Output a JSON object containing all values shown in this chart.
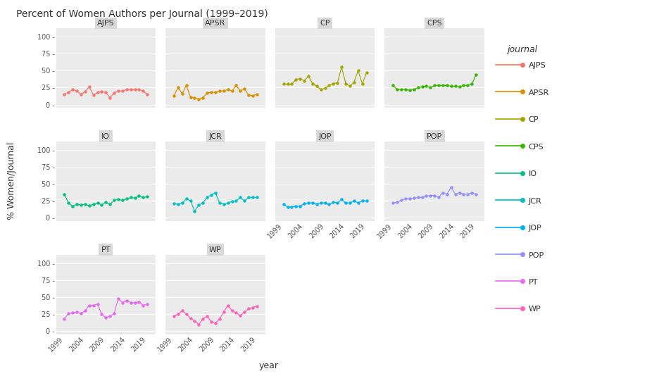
{
  "title": "Percent of Women Authors per Journal (1999–2019)",
  "ylabel": "% Women/Journal",
  "xlabel": "year",
  "colors": {
    "AJPS": "#F8766D",
    "APSR": "#D89000",
    "CP": "#A3A500",
    "CPS": "#39B600",
    "IO": "#00BF7D",
    "JCR": "#00BFC4",
    "JOP": "#00B0F6",
    "POP": "#9590FF",
    "PT": "#E76BF3",
    "WP": "#FF62BC"
  },
  "data": {
    "AJPS": {
      "years": [
        1999,
        2000,
        2001,
        2002,
        2003,
        2004,
        2005,
        2006,
        2007,
        2008,
        2009,
        2010,
        2011,
        2012,
        2013,
        2014,
        2015,
        2016,
        2017,
        2018,
        2019
      ],
      "values": [
        15,
        18,
        22,
        20,
        15,
        19,
        26,
        14,
        18,
        19,
        18,
        10,
        17,
        20,
        20,
        22,
        22,
        22,
        22,
        20,
        15
      ]
    },
    "APSR": {
      "years": [
        1999,
        2000,
        2001,
        2002,
        2003,
        2004,
        2005,
        2006,
        2007,
        2008,
        2009,
        2010,
        2011,
        2012,
        2013,
        2014,
        2015,
        2016,
        2017,
        2018,
        2019
      ],
      "values": [
        13,
        25,
        16,
        28,
        11,
        10,
        8,
        10,
        17,
        18,
        18,
        20,
        20,
        22,
        20,
        28,
        20,
        23,
        14,
        13,
        15
      ]
    },
    "CP": {
      "years": [
        1999,
        2000,
        2001,
        2002,
        2003,
        2004,
        2005,
        2006,
        2007,
        2008,
        2009,
        2010,
        2011,
        2012,
        2013,
        2014,
        2015,
        2016,
        2017,
        2018,
        2019
      ],
      "values": [
        30,
        30,
        30,
        37,
        38,
        35,
        42,
        31,
        27,
        22,
        24,
        28,
        31,
        32,
        55,
        31,
        27,
        33,
        50,
        30,
        47
      ]
    },
    "CPS": {
      "years": [
        1999,
        2000,
        2001,
        2002,
        2003,
        2004,
        2005,
        2006,
        2007,
        2008,
        2009,
        2010,
        2011,
        2012,
        2013,
        2014,
        2015,
        2016,
        2017,
        2018,
        2019
      ],
      "values": [
        28,
        22,
        22,
        22,
        21,
        22,
        25,
        26,
        27,
        25,
        28,
        28,
        28,
        28,
        27,
        27,
        26,
        28,
        28,
        30,
        44
      ]
    },
    "IO": {
      "years": [
        1999,
        2000,
        2001,
        2002,
        2003,
        2004,
        2005,
        2006,
        2007,
        2008,
        2009,
        2010,
        2011,
        2012,
        2013,
        2014,
        2015,
        2016,
        2017,
        2018,
        2019
      ],
      "values": [
        35,
        22,
        17,
        20,
        19,
        20,
        18,
        20,
        22,
        19,
        23,
        20,
        26,
        27,
        26,
        28,
        30,
        29,
        32,
        30,
        31
      ]
    },
    "JCR": {
      "years": [
        1999,
        2000,
        2001,
        2002,
        2003,
        2004,
        2005,
        2006,
        2007,
        2008,
        2009,
        2010,
        2011,
        2012,
        2013,
        2014,
        2015,
        2016,
        2017,
        2018,
        2019
      ],
      "values": [
        21,
        20,
        22,
        28,
        25,
        10,
        19,
        22,
        30,
        34,
        37,
        22,
        20,
        22,
        24,
        25,
        30,
        25,
        30,
        30,
        30
      ]
    },
    "JOP": {
      "years": [
        1999,
        2000,
        2001,
        2002,
        2003,
        2004,
        2005,
        2006,
        2007,
        2008,
        2009,
        2010,
        2011,
        2012,
        2013,
        2014,
        2015,
        2016,
        2017,
        2018,
        2019
      ],
      "values": [
        20,
        16,
        16,
        17,
        17,
        21,
        22,
        22,
        20,
        22,
        22,
        20,
        23,
        22,
        27,
        22,
        22,
        25,
        22,
        25,
        25
      ]
    },
    "POP": {
      "years": [
        1999,
        2000,
        2001,
        2002,
        2003,
        2004,
        2005,
        2006,
        2007,
        2008,
        2009,
        2010,
        2011,
        2012,
        2013,
        2014,
        2015,
        2016,
        2017,
        2018,
        2019
      ],
      "values": [
        22,
        23,
        26,
        28,
        28,
        29,
        30,
        30,
        32,
        33,
        33,
        30,
        37,
        35,
        45,
        35,
        37,
        35,
        35,
        37,
        35
      ]
    },
    "PT": {
      "years": [
        1999,
        2000,
        2001,
        2002,
        2003,
        2004,
        2005,
        2006,
        2007,
        2008,
        2009,
        2010,
        2011,
        2012,
        2013,
        2014,
        2015,
        2016,
        2017,
        2018,
        2019
      ],
      "values": [
        18,
        26,
        27,
        28,
        26,
        30,
        38,
        38,
        40,
        25,
        20,
        22,
        26,
        48,
        42,
        45,
        42,
        42,
        43,
        38,
        40
      ]
    },
    "WP": {
      "years": [
        1999,
        2000,
        2001,
        2002,
        2003,
        2004,
        2005,
        2006,
        2007,
        2008,
        2009,
        2010,
        2011,
        2012,
        2013,
        2014,
        2015,
        2016,
        2017,
        2018,
        2019
      ],
      "values": [
        22,
        25,
        30,
        25,
        19,
        15,
        10,
        18,
        22,
        14,
        12,
        18,
        28,
        38,
        30,
        27,
        23,
        28,
        33,
        35,
        37
      ]
    }
  },
  "layout_order": [
    "AJPS",
    "APSR",
    "CP",
    "CPS",
    "IO",
    "JCR",
    "JOP",
    "POP",
    "PT",
    "WP"
  ],
  "yticks": [
    0,
    25,
    50,
    75,
    100
  ],
  "xticks": [
    1999,
    2004,
    2009,
    2014,
    2019
  ],
  "ylim": [
    -5,
    112
  ],
  "xlim": [
    1997,
    2021
  ],
  "panel_bg": "#EBEBEB",
  "grid_color": "#FFFFFF",
  "fig_bg": "#FFFFFF",
  "title_fontsize": 10,
  "axis_label_fontsize": 9,
  "tick_fontsize": 7,
  "panel_title_fontsize": 8,
  "legend_title_fontsize": 9,
  "legend_entry_fontsize": 8
}
